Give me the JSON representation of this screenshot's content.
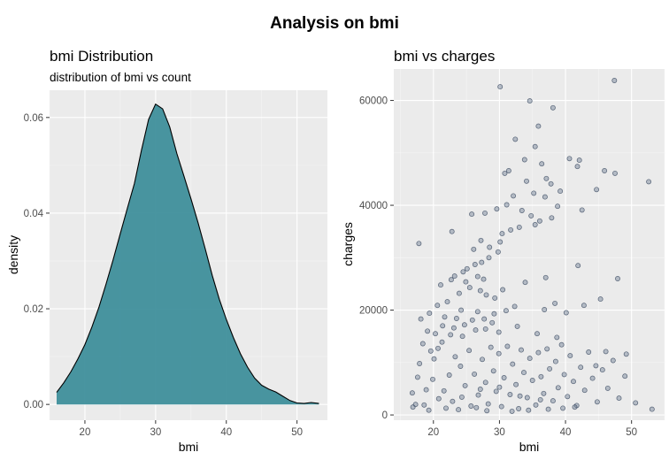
{
  "figure": {
    "title": "Analysis on bmi"
  },
  "colors": {
    "density_fill": "#3f8f9b",
    "density_line": "#000000",
    "point_fill": "#6e7f94",
    "point_stroke": "#2e3e55"
  },
  "chart_data": [
    {
      "type": "area",
      "title": "bmi Distribution",
      "subtitle": "distribution of bmi vs count",
      "xlabel": "bmi",
      "ylabel": "density",
      "xlim": [
        15.0,
        54.3
      ],
      "ylim": [
        -0.0033,
        0.0657
      ],
      "x_ticks": [
        20,
        30,
        40,
        50
      ],
      "y_ticks": [
        0.0,
        0.02,
        0.04,
        0.06
      ],
      "y_tick_labels": [
        "0.00",
        "0.02",
        "0.04",
        "0.06"
      ],
      "grid": true,
      "x": [
        16.0,
        17.0,
        18.0,
        19.0,
        20.0,
        21.0,
        22.0,
        23.0,
        24.0,
        25.0,
        26.0,
        27.0,
        28.0,
        29.0,
        30.0,
        31.0,
        32.0,
        33.0,
        34.0,
        35.0,
        36.0,
        37.0,
        38.0,
        39.0,
        40.0,
        41.0,
        42.0,
        43.0,
        44.0,
        45.0,
        46.0,
        47.0,
        48.0,
        49.0,
        50.0,
        51.0,
        52.0,
        53.1
      ],
      "y": [
        0.0025,
        0.0045,
        0.0068,
        0.0095,
        0.0125,
        0.0162,
        0.0204,
        0.0252,
        0.0303,
        0.0357,
        0.041,
        0.0462,
        0.0532,
        0.0596,
        0.0628,
        0.0618,
        0.058,
        0.0525,
        0.0478,
        0.043,
        0.038,
        0.0326,
        0.027,
        0.022,
        0.0178,
        0.014,
        0.0106,
        0.0078,
        0.0055,
        0.004,
        0.0032,
        0.0026,
        0.0017,
        0.0008,
        0.0003,
        0.0002,
        0.0004,
        0.0002
      ]
    },
    {
      "type": "scatter",
      "title": "bmi vs charges",
      "xlabel": "bmi",
      "ylabel": "charges",
      "xlim": [
        14.0,
        55.0
      ],
      "ylim": [
        -1000,
        66000
      ],
      "x_ticks": [
        20,
        30,
        40,
        50
      ],
      "y_ticks": [
        0,
        20000,
        40000,
        60000
      ],
      "y_tick_labels": [
        "0",
        "20000",
        "40000",
        "60000"
      ],
      "grid": true,
      "points": [
        [
          30.1,
          62600
        ],
        [
          47.4,
          63800
        ],
        [
          34.6,
          59900
        ],
        [
          38.1,
          58600
        ],
        [
          32.4,
          52600
        ],
        [
          52.6,
          44500
        ],
        [
          35.9,
          55100
        ],
        [
          35.4,
          51200
        ],
        [
          33.8,
          48700
        ],
        [
          40.6,
          48900
        ],
        [
          42.1,
          48600
        ],
        [
          45.9,
          46600
        ],
        [
          47.5,
          46100
        ],
        [
          41.8,
          47400
        ],
        [
          36.4,
          47900
        ],
        [
          31.4,
          46600
        ],
        [
          30.8,
          46100
        ],
        [
          37.1,
          45100
        ],
        [
          34.1,
          44600
        ],
        [
          37.8,
          44100
        ],
        [
          44.7,
          43000
        ],
        [
          39.2,
          42700
        ],
        [
          35.2,
          42300
        ],
        [
          32.1,
          41800
        ],
        [
          36.9,
          41600
        ],
        [
          38.8,
          39800
        ],
        [
          42.5,
          39100
        ],
        [
          33.4,
          39000
        ],
        [
          31.1,
          40100
        ],
        [
          29.6,
          39300
        ],
        [
          27.8,
          38500
        ],
        [
          25.8,
          38300
        ],
        [
          34.8,
          38000
        ],
        [
          37.9,
          37600
        ],
        [
          36.1,
          37000
        ],
        [
          35.4,
          36300
        ],
        [
          33.0,
          35800
        ],
        [
          31.7,
          35300
        ],
        [
          30.4,
          34600
        ],
        [
          22.8,
          35000
        ],
        [
          17.8,
          32700
        ],
        [
          27.2,
          33300
        ],
        [
          30.1,
          33000
        ],
        [
          28.5,
          32000
        ],
        [
          26.1,
          31600
        ],
        [
          29.8,
          31100
        ],
        [
          28.4,
          30000
        ],
        [
          27.3,
          29100
        ],
        [
          26.3,
          28700
        ],
        [
          25.1,
          27900
        ],
        [
          24.5,
          27300
        ],
        [
          23.2,
          26500
        ],
        [
          22.7,
          25800
        ],
        [
          24.9,
          25400
        ],
        [
          26.7,
          26400
        ],
        [
          27.6,
          25900
        ],
        [
          21.1,
          24800
        ],
        [
          25.5,
          24300
        ],
        [
          23.9,
          23200
        ],
        [
          27.1,
          23700
        ],
        [
          28.0,
          22900
        ],
        [
          29.3,
          22300
        ],
        [
          30.5,
          23900
        ],
        [
          41.9,
          28500
        ],
        [
          47.9,
          26000
        ],
        [
          37.0,
          26200
        ],
        [
          33.9,
          25300
        ],
        [
          45.3,
          22100
        ],
        [
          38.4,
          21300
        ],
        [
          42.8,
          20900
        ],
        [
          36.8,
          20100
        ],
        [
          40.1,
          19500
        ],
        [
          32.3,
          20700
        ],
        [
          31.0,
          19900
        ],
        [
          29.2,
          19300
        ],
        [
          26.7,
          19700
        ],
        [
          24.2,
          20000
        ],
        [
          22.1,
          21600
        ],
        [
          20.6,
          20900
        ],
        [
          19.4,
          19400
        ],
        [
          18.1,
          18300
        ],
        [
          21.7,
          18700
        ],
        [
          23.5,
          18400
        ],
        [
          25.9,
          18100
        ],
        [
          27.7,
          18300
        ],
        [
          28.9,
          17600
        ],
        [
          24.7,
          17200
        ],
        [
          21.4,
          17000
        ],
        [
          23.1,
          16600
        ],
        [
          26.4,
          16200
        ],
        [
          19.1,
          16000
        ],
        [
          20.3,
          15500
        ],
        [
          22.6,
          15300
        ],
        [
          24.4,
          15000
        ],
        [
          27.9,
          16400
        ],
        [
          29.9,
          15800
        ],
        [
          32.7,
          16900
        ],
        [
          35.7,
          15500
        ],
        [
          38.7,
          14800
        ],
        [
          46.1,
          12100
        ],
        [
          49.2,
          11600
        ],
        [
          44.6,
          9400
        ],
        [
          50.6,
          2300
        ],
        [
          53.1,
          1100
        ],
        [
          17.3,
          2000
        ],
        [
          18.6,
          1900
        ],
        [
          16.8,
          4200
        ],
        [
          17.9,
          9800
        ],
        [
          18.4,
          13600
        ],
        [
          19.6,
          12200
        ],
        [
          20.7,
          12700
        ],
        [
          21.3,
          13900
        ],
        [
          19.9,
          6800
        ],
        [
          20.8,
          3100
        ],
        [
          21.9,
          1300
        ],
        [
          18.9,
          4800
        ],
        [
          22.4,
          7600
        ],
        [
          23.3,
          11100
        ],
        [
          22.9,
          2600
        ],
        [
          19.3,
          900
        ],
        [
          24.1,
          9300
        ],
        [
          24.8,
          5600
        ],
        [
          25.4,
          12300
        ],
        [
          25.7,
          1700
        ],
        [
          26.2,
          7800
        ],
        [
          26.8,
          3800
        ],
        [
          27.4,
          10600
        ],
        [
          27.9,
          6200
        ],
        [
          28.3,
          2100
        ],
        [
          28.7,
          12900
        ],
        [
          29.1,
          8400
        ],
        [
          29.5,
          4500
        ],
        [
          29.9,
          11700
        ],
        [
          30.3,
          1600
        ],
        [
          30.7,
          7100
        ],
        [
          31.2,
          13100
        ],
        [
          31.6,
          3900
        ],
        [
          32.0,
          9700
        ],
        [
          32.5,
          5800
        ],
        [
          32.9,
          1200
        ],
        [
          33.3,
          12400
        ],
        [
          33.7,
          8100
        ],
        [
          34.2,
          3300
        ],
        [
          34.6,
          10800
        ],
        [
          35.0,
          6600
        ],
        [
          35.5,
          1900
        ],
        [
          35.9,
          11900
        ],
        [
          36.3,
          7300
        ],
        [
          36.7,
          4100
        ],
        [
          37.2,
          12600
        ],
        [
          37.6,
          8800
        ],
        [
          38.1,
          2700
        ],
        [
          38.5,
          10200
        ],
        [
          38.9,
          5200
        ],
        [
          39.4,
          13400
        ],
        [
          39.8,
          7700
        ],
        [
          40.3,
          3500
        ],
        [
          40.7,
          11300
        ],
        [
          41.2,
          6400
        ],
        [
          41.7,
          1800
        ],
        [
          42.3,
          9100
        ],
        [
          42.9,
          4700
        ],
        [
          43.5,
          12000
        ],
        [
          44.1,
          7000
        ],
        [
          44.8,
          2500
        ],
        [
          45.6,
          8600
        ],
        [
          46.4,
          5100
        ],
        [
          47.2,
          10400
        ],
        [
          48.1,
          3200
        ],
        [
          49.0,
          7400
        ],
        [
          23.8,
          1000
        ],
        [
          26.5,
          1400
        ],
        [
          28.1,
          800
        ],
        [
          31.9,
          700
        ],
        [
          34.4,
          900
        ],
        [
          37.4,
          1100
        ],
        [
          39.6,
          1300
        ],
        [
          41.4,
          1500
        ],
        [
          36.2,
          2900
        ],
        [
          33.1,
          3600
        ],
        [
          30.0,
          5300
        ],
        [
          27.1,
          4900
        ],
        [
          24.3,
          3400
        ],
        [
          21.6,
          4600
        ],
        [
          20.1,
          10700
        ],
        [
          17.6,
          7200
        ],
        [
          16.9,
          1500
        ]
      ]
    }
  ]
}
